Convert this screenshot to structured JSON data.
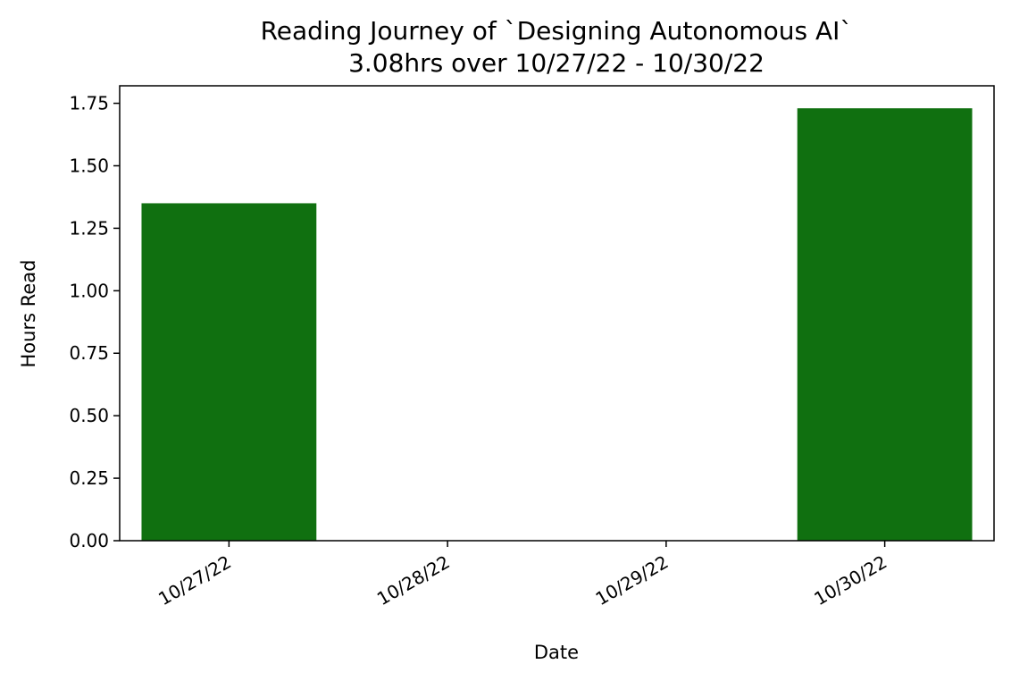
{
  "chart_data": {
    "type": "bar",
    "title": "Reading Journey of `Designing Autonomous AI`",
    "subtitle": "3.08hrs over 10/27/22 - 10/30/22",
    "xlabel": "Date",
    "ylabel": "Hours Read",
    "categories": [
      "10/27/22",
      "10/28/22",
      "10/29/22",
      "10/30/22"
    ],
    "values": [
      1.35,
      0,
      0,
      1.73
    ],
    "ylim": [
      0,
      1.82
    ],
    "yticks": [
      0.0,
      0.25,
      0.5,
      0.75,
      1.0,
      1.25,
      1.5,
      1.75
    ],
    "ytick_labels": [
      "0.00",
      "0.25",
      "0.50",
      "0.75",
      "1.00",
      "1.25",
      "1.50",
      "1.75"
    ],
    "bar_color": "#107010",
    "grid": false,
    "legend": "none"
  }
}
